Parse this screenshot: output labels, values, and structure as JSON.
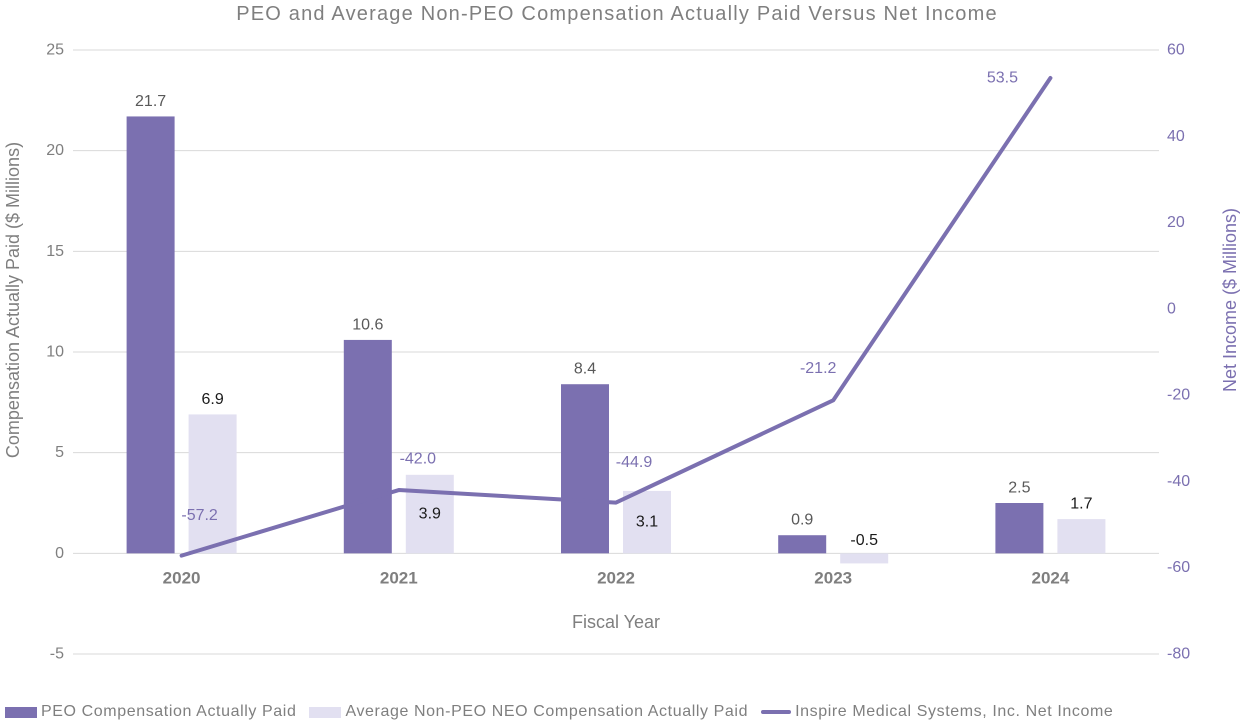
{
  "chart_data": {
    "type": "bar",
    "title": "PEO and Average Non-PEO Compensation Actually Paid Versus Net Income",
    "xlabel": "Fiscal Year",
    "categories": [
      "2020",
      "2021",
      "2022",
      "2023",
      "2024"
    ],
    "series": [
      {
        "name": "PEO Compensation Actually Paid",
        "type": "bar",
        "axis": "left",
        "values": [
          21.7,
          10.6,
          8.4,
          0.9,
          2.5
        ],
        "color": "#7b70b0",
        "label_color": "#595959",
        "label_placement": [
          "above",
          "above",
          "above",
          "above",
          "above"
        ]
      },
      {
        "name": "Average Non-PEO NEO Compensation Actually Paid",
        "type": "bar",
        "axis": "left",
        "values": [
          6.9,
          3.9,
          3.1,
          -0.5,
          1.7
        ],
        "color": "#e2e0f1",
        "label_color": "#1a1a1a",
        "label_placement": [
          "above",
          "center",
          "center",
          "above",
          "above"
        ]
      },
      {
        "name": "Inspire Medical Systems, Inc. Net Income",
        "type": "line",
        "axis": "right",
        "values": [
          -57.2,
          -42.0,
          -44.9,
          -21.2,
          53.5
        ],
        "color": "#7b70b0",
        "label_color": "#7b70b0",
        "label_offsets": [
          [
            18,
            -40
          ],
          [
            19,
            -31
          ],
          [
            18,
            -40
          ],
          [
            -15,
            -32
          ],
          [
            -48,
            0
          ]
        ]
      }
    ],
    "left_axis": {
      "label": "Compensation Actually Paid ($ Millions)",
      "min": -5,
      "max": 25,
      "step": 5,
      "ticks": [
        25,
        20,
        15,
        10,
        5,
        0,
        -5
      ],
      "color": "#7f7f7f"
    },
    "right_axis": {
      "label": "Net Income ($ Millions)",
      "min": -80,
      "max": 60,
      "step": 20,
      "ticks": [
        60,
        40,
        20,
        0,
        -20,
        -40,
        -60,
        -80
      ],
      "color": "#7b70b0"
    },
    "grid": true,
    "grid_color": "#d9d9d9",
    "category_label_color": "#7f7f7f",
    "xlabel_color": "#7f7f7f",
    "legend_position": "bottom",
    "value_label_decimals": 1
  }
}
